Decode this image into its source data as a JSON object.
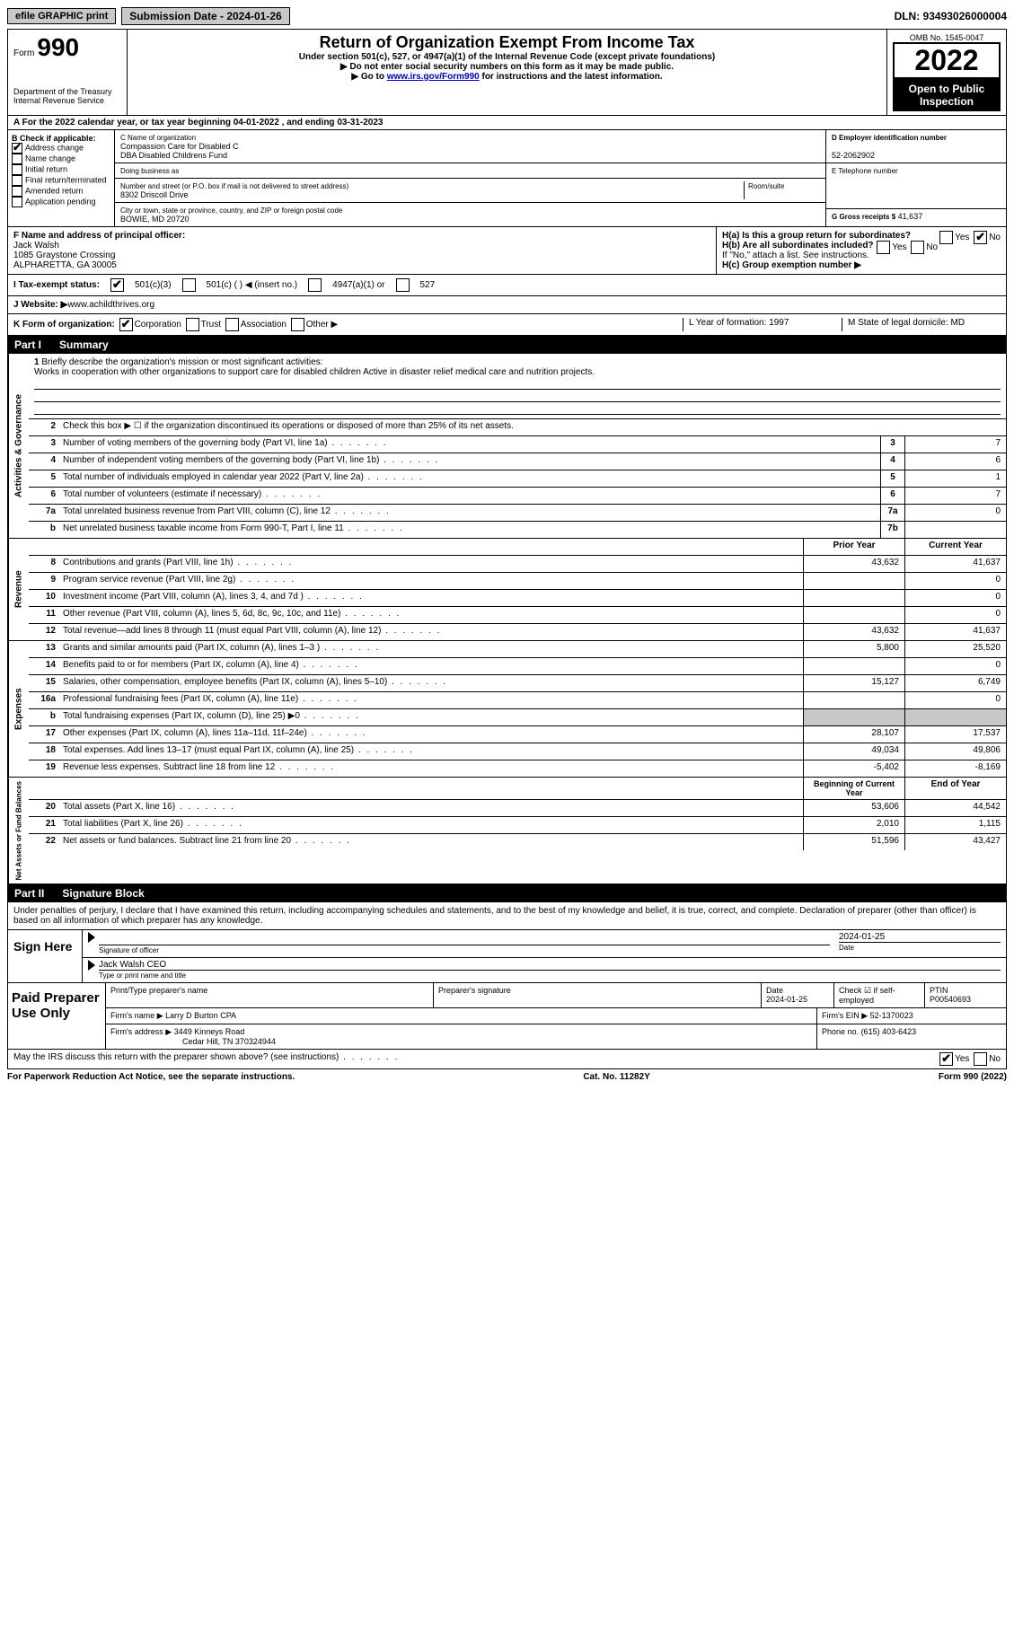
{
  "top": {
    "efile": "efile GRAPHIC print",
    "submission": "Submission Date - 2024-01-26",
    "dln": "DLN: 93493026000004"
  },
  "header": {
    "form_label": "Form",
    "form_num": "990",
    "dept": "Department of the Treasury",
    "irs": "Internal Revenue Service",
    "title": "Return of Organization Exempt From Income Tax",
    "sub1": "Under section 501(c), 527, or 4947(a)(1) of the Internal Revenue Code (except private foundations)",
    "sub2": "▶ Do not enter social security numbers on this form as it may be made public.",
    "sub3_pre": "▶ Go to ",
    "sub3_link": "www.irs.gov/Form990",
    "sub3_post": " for instructions and the latest information.",
    "omb": "OMB No. 1545-0047",
    "year": "2022",
    "open": "Open to Public Inspection"
  },
  "section_a": "A For the 2022 calendar year, or tax year beginning 04-01-2022     , and ending 03-31-2023",
  "col_b": {
    "title": "B Check if applicable:",
    "items": [
      "Address change",
      "Name change",
      "Initial return",
      "Final return/terminated",
      "Amended return",
      "Application pending"
    ],
    "checked": [
      true,
      false,
      false,
      false,
      false,
      false
    ]
  },
  "col_c": {
    "name_lbl": "C Name of organization",
    "name1": "Compassion Care for Disabled C",
    "name2": "DBA Disabled Childrens Fund",
    "dba_lbl": "Doing business as",
    "addr_lbl": "Number and street (or P.O. box if mail is not delivered to street address)",
    "addr": "8302 Driscoll Drive",
    "room_lbl": "Room/suite",
    "city_lbl": "City or town, state or province, country, and ZIP or foreign postal code",
    "city": "BOWIE, MD   20720"
  },
  "col_d": {
    "ein_lbl": "D Employer identification number",
    "ein": "52-2062902",
    "tel_lbl": "E Telephone number",
    "gross_lbl": "G Gross receipts $",
    "gross": "41,637"
  },
  "mid": {
    "f_lbl": "F  Name and address of principal officer:",
    "f_name": "Jack Walsh",
    "f_addr1": "1085 Graystone Crossing",
    "f_addr2": "ALPHARETTA, GA   30005",
    "ha": "H(a)  Is this a group return for subordinates?",
    "hb": "H(b)  Are all subordinates included?",
    "hb_note": "If \"No,\" attach a list. See instructions.",
    "hc": "H(c)  Group exemption number ▶",
    "yes": "Yes",
    "no": "No"
  },
  "status": {
    "lbl": "I   Tax-exempt status:",
    "opt1": "501(c)(3)",
    "opt2": "501(c) (   ) ◀ (insert no.)",
    "opt3": "4947(a)(1) or",
    "opt4": "527"
  },
  "website": {
    "lbl": "J   Website: ▶",
    "val": "  www.achildthrives.org"
  },
  "formorg": {
    "k": "K Form of organization:",
    "corp": "Corporation",
    "trust": "Trust",
    "assoc": "Association",
    "other": "Other ▶",
    "l": "L Year of formation: 1997",
    "m": "M State of legal domicile: MD"
  },
  "part1": {
    "num": "Part I",
    "title": "Summary"
  },
  "summary": {
    "q1": "Briefly describe the organization's mission or most significant activities:",
    "mission": "Works in cooperation with other organizations to support care for disabled children Active in disaster relief medical care and nutrition projects.",
    "q2": "Check this box ▶ ☐  if the organization discontinued its operations or disposed of more than 25% of its net assets.",
    "rows_gov": [
      {
        "n": "3",
        "d": "Number of voting members of the governing body (Part VI, line 1a)",
        "b": "3",
        "v": "7"
      },
      {
        "n": "4",
        "d": "Number of independent voting members of the governing body (Part VI, line 1b)",
        "b": "4",
        "v": "6"
      },
      {
        "n": "5",
        "d": "Total number of individuals employed in calendar year 2022 (Part V, line 2a)",
        "b": "5",
        "v": "1"
      },
      {
        "n": "6",
        "d": "Total number of volunteers (estimate if necessary)",
        "b": "6",
        "v": "7"
      },
      {
        "n": "7a",
        "d": "Total unrelated business revenue from Part VIII, column (C), line 12",
        "b": "7a",
        "v": "0"
      },
      {
        "n": "b",
        "d": "Net unrelated business taxable income from Form 990-T, Part I, line 11",
        "b": "7b",
        "v": ""
      }
    ],
    "hdr_prior": "Prior Year",
    "hdr_curr": "Current Year",
    "rows_rev": [
      {
        "n": "8",
        "d": "Contributions and grants (Part VIII, line 1h)",
        "p": "43,632",
        "c": "41,637"
      },
      {
        "n": "9",
        "d": "Program service revenue (Part VIII, line 2g)",
        "p": "",
        "c": "0"
      },
      {
        "n": "10",
        "d": "Investment income (Part VIII, column (A), lines 3, 4, and 7d )",
        "p": "",
        "c": "0"
      },
      {
        "n": "11",
        "d": "Other revenue (Part VIII, column (A), lines 5, 6d, 8c, 9c, 10c, and 11e)",
        "p": "",
        "c": "0"
      },
      {
        "n": "12",
        "d": "Total revenue—add lines 8 through 11 (must equal Part VIII, column (A), line 12)",
        "p": "43,632",
        "c": "41,637"
      }
    ],
    "rows_exp": [
      {
        "n": "13",
        "d": "Grants and similar amounts paid (Part IX, column (A), lines 1–3 )",
        "p": "5,800",
        "c": "25,520"
      },
      {
        "n": "14",
        "d": "Benefits paid to or for members (Part IX, column (A), line 4)",
        "p": "",
        "c": "0"
      },
      {
        "n": "15",
        "d": "Salaries, other compensation, employee benefits (Part IX, column (A), lines 5–10)",
        "p": "15,127",
        "c": "6,749"
      },
      {
        "n": "16a",
        "d": "Professional fundraising fees (Part IX, column (A), line 11e)",
        "p": "",
        "c": "0"
      },
      {
        "n": "b",
        "d": "Total fundraising expenses (Part IX, column (D), line 25) ▶0",
        "p": "grey",
        "c": "grey"
      },
      {
        "n": "17",
        "d": "Other expenses (Part IX, column (A), lines 11a–11d, 11f–24e)",
        "p": "28,107",
        "c": "17,537"
      },
      {
        "n": "18",
        "d": "Total expenses. Add lines 13–17 (must equal Part IX, column (A), line 25)",
        "p": "49,034",
        "c": "49,806"
      },
      {
        "n": "19",
        "d": "Revenue less expenses. Subtract line 18 from line 12",
        "p": "-5,402",
        "c": "-8,169"
      }
    ],
    "hdr_beg": "Beginning of Current Year",
    "hdr_end": "End of Year",
    "rows_net": [
      {
        "n": "20",
        "d": "Total assets (Part X, line 16)",
        "p": "53,606",
        "c": "44,542"
      },
      {
        "n": "21",
        "d": "Total liabilities (Part X, line 26)",
        "p": "2,010",
        "c": "1,115"
      },
      {
        "n": "22",
        "d": "Net assets or fund balances. Subtract line 21 from line 20",
        "p": "51,596",
        "c": "43,427"
      }
    ],
    "vert_gov": "Activities & Governance",
    "vert_rev": "Revenue",
    "vert_exp": "Expenses",
    "vert_net": "Net Assets or Fund Balances"
  },
  "part2": {
    "num": "Part II",
    "title": "Signature Block"
  },
  "sig": {
    "decl": "Under penalties of perjury, I declare that I have examined this return, including accompanying schedules and statements, and to the best of my knowledge and belief, it is true, correct, and complete. Declaration of preparer (other than officer) is based on all information of which preparer has any knowledge.",
    "sign_here": "Sign Here",
    "sig_officer": "Signature of officer",
    "date1": "2024-01-25",
    "date_lbl": "Date",
    "name_title": "Jack Walsh CEO",
    "name_lbl": "Type or print name and title"
  },
  "prep": {
    "lbl": "Paid Preparer Use Only",
    "print_lbl": "Print/Type preparer's name",
    "sig_lbl": "Preparer's signature",
    "date_lbl": "Date",
    "date": "2024-01-25",
    "check_lbl": "Check ☑  if self-employed",
    "ptin_lbl": "PTIN",
    "ptin": "P00540693",
    "firm_name_lbl": "Firm's name      ▶",
    "firm_name": "Larry D Burton CPA",
    "firm_ein_lbl": "Firm's EIN ▶",
    "firm_ein": "52-1370023",
    "firm_addr_lbl": "Firm's address ▶",
    "firm_addr1": "3449 Kinneys Road",
    "firm_addr2": "Cedar Hill, TN   370324944",
    "phone_lbl": "Phone no.",
    "phone": "(615) 403-6423"
  },
  "footer": {
    "discuss": "May the IRS discuss this return with the preparer shown above? (see instructions)",
    "yes": "Yes",
    "no": "No",
    "paperwork": "For Paperwork Reduction Act Notice, see the separate instructions.",
    "cat": "Cat. No. 11282Y",
    "form": "Form 990 (2022)"
  }
}
